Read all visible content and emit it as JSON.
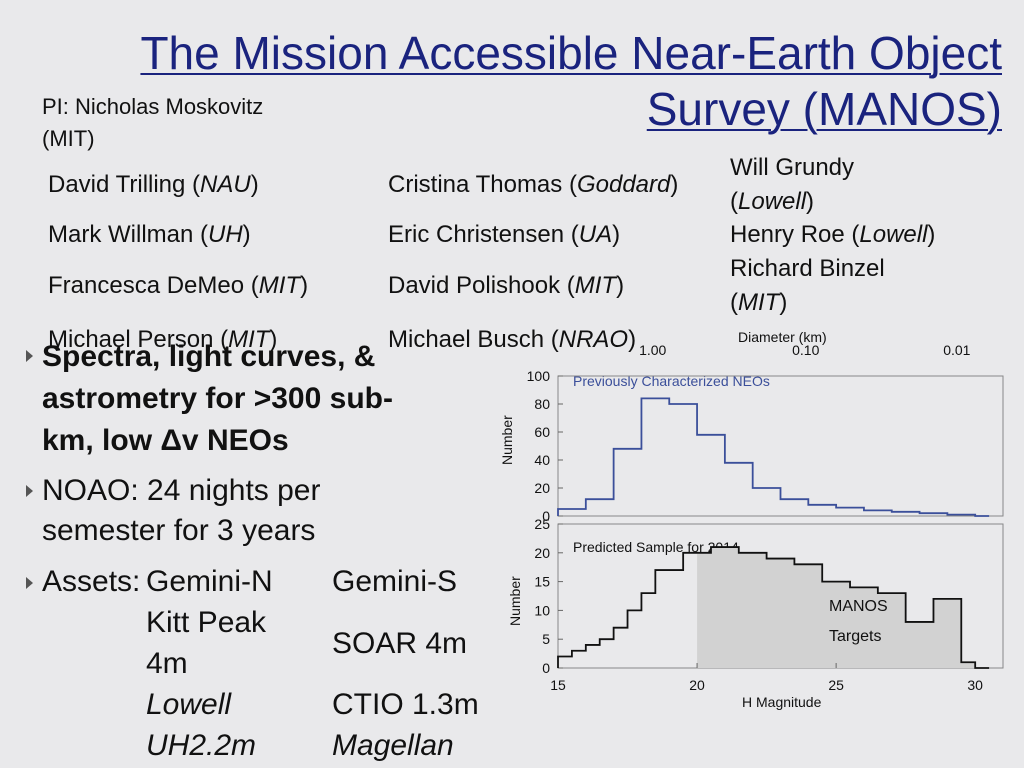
{
  "title": {
    "line1": "The Mission Accessible Near-Earth Object",
    "line2": "Survey (MANOS)"
  },
  "pi": {
    "line1": "PI: Nicholas Moskovitz",
    "line2": "(MIT)"
  },
  "team": [
    {
      "name": "David Trilling (",
      "inst": "NAU",
      "close": ")"
    },
    {
      "name": "Mark Willman (",
      "inst": "UH",
      "close": ")"
    },
    {
      "name": "Francesca DeMeo (",
      "inst": "MIT",
      "close": ")"
    },
    {
      "name": "Michael Person (",
      "inst": "MIT",
      "close": ")"
    },
    {
      "name": "Cristina Thomas (",
      "inst": "Goddard",
      "close": ")"
    },
    {
      "name": "Eric Christensen (",
      "inst": "UA",
      "close": ")"
    },
    {
      "name": "David Polishook (",
      "inst": "MIT",
      "close": ")"
    },
    {
      "name": "Michael Busch (",
      "inst": "NRAO",
      "close": ")"
    },
    {
      "name": "Will Grundy",
      "inst": "Lowell",
      "pre": "(",
      "close": ")"
    },
    {
      "name": "Henry Roe (",
      "inst": "Lowell",
      "close": ")"
    },
    {
      "name": "Richard Binzel",
      "inst": "MIT",
      "pre": "(",
      "close": ")"
    }
  ],
  "bullets": {
    "b1_line1": "Spectra, light curves, &",
    "b1_line2": "astrometry for >300 sub-",
    "b1_line3": "km, low Δv NEOs",
    "b2_line1": "NOAO: 24 nights per",
    "b2_line2": "semester for 3 years",
    "b3_label": "Assets:"
  },
  "assets": {
    "gemini_n": "Gemini-N",
    "kitt_peak_1": "Kitt Peak",
    "kitt_peak_2": "4m",
    "lowell": "Lowell",
    "uh": "UH2.2m",
    "gemini_s": "Gemini-S",
    "soar": "SOAR 4m",
    "ctio": "CTIO 1.3m",
    "magellan": "Magellan"
  },
  "colors": {
    "title": "#1a237e",
    "chart_line": "#3b4f9a",
    "shade": "#d2d2d2",
    "background": "#e9e9eb"
  },
  "chart_data": [
    {
      "type": "line",
      "title": "Previously Characterized NEOs",
      "ylabel": "Number",
      "top_axis_label": "Diameter (km)",
      "top_ticks": [
        "1.00",
        "0.10",
        "0.01"
      ],
      "y_ticks": [
        "0",
        "20",
        "40",
        "60",
        "80",
        "100"
      ],
      "ylim": [
        0,
        100
      ],
      "xlim": [
        15,
        31
      ],
      "step": true,
      "x": [
        15,
        15.5,
        16,
        16.5,
        17,
        17.5,
        18,
        18.5,
        19,
        19.5,
        20,
        20.5,
        21,
        21.5,
        22,
        22.5,
        23,
        23.5,
        24,
        24.5,
        25,
        25.5,
        26,
        26.5,
        27,
        27.5,
        28,
        28.5,
        29,
        29.5,
        30
      ],
      "values": [
        5,
        5,
        12,
        12,
        48,
        48,
        84,
        84,
        80,
        80,
        58,
        58,
        38,
        38,
        20,
        20,
        12,
        12,
        8,
        8,
        6,
        6,
        4,
        4,
        3,
        3,
        2,
        2,
        1,
        1,
        0
      ]
    },
    {
      "type": "line",
      "title": "Predicted Sample for 2014",
      "ylabel": "Number",
      "xlabel": "H Magnitude",
      "x_ticks": [
        "15",
        "20",
        "25",
        "30"
      ],
      "y_ticks": [
        "0",
        "5",
        "10",
        "15",
        "20",
        "25"
      ],
      "ylim": [
        0,
        25
      ],
      "xlim": [
        15,
        31
      ],
      "step": true,
      "shaded_from": 20,
      "shade_label_line1": "MANOS",
      "shade_label_line2": "Targets",
      "x": [
        15,
        15.5,
        16,
        16.5,
        17,
        17.5,
        18,
        18.5,
        19,
        19.5,
        20,
        20.5,
        21,
        21.5,
        22,
        22.5,
        23,
        23.5,
        24,
        24.5,
        25,
        25.5,
        26,
        26.5,
        27,
        27.5,
        28,
        28.5,
        29,
        29.5,
        30
      ],
      "values": [
        2,
        3,
        4,
        5,
        7,
        10,
        13,
        17,
        17,
        20,
        20,
        21,
        21,
        20,
        20,
        19,
        19,
        18,
        18,
        15,
        15,
        14,
        14,
        13,
        13,
        8,
        8,
        12,
        12,
        1,
        0
      ]
    }
  ]
}
